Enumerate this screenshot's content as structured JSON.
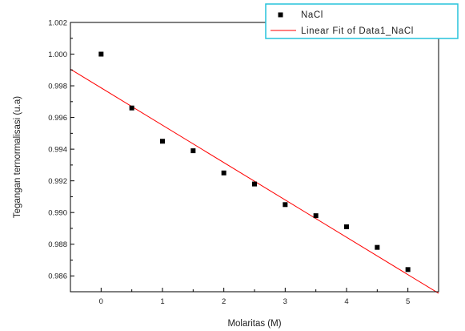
{
  "chart_data": {
    "type": "scatter",
    "title": "",
    "xlabel": "Molaritas (M)",
    "ylabel": "Tegangan ternormalisasi (u.a)",
    "xlim": [
      -0.5,
      5.5
    ],
    "ylim": [
      0.985,
      1.002
    ],
    "x_ticks": [
      0,
      1,
      2,
      3,
      4,
      5
    ],
    "x_tick_labels": [
      "0",
      "1",
      "2",
      "3",
      "4",
      "5"
    ],
    "y_ticks": [
      0.986,
      0.988,
      0.99,
      0.992,
      0.994,
      0.996,
      0.998,
      1.0,
      1.002
    ],
    "y_tick_labels": [
      "0.986",
      "0.988",
      "0.990",
      "0.992",
      "0.994",
      "0.996",
      "0.998",
      "1.000",
      "1.002"
    ],
    "grid": false,
    "legend_position": "top-right",
    "series": [
      {
        "name": "NaCl",
        "kind": "scatter",
        "marker": "square",
        "color": "#000000",
        "x": [
          0,
          0.5,
          1,
          1.5,
          2,
          2.5,
          3,
          3.5,
          4,
          4.5,
          5
        ],
        "y": [
          1.0,
          0.9966,
          0.9945,
          0.9939,
          0.9925,
          0.9918,
          0.9905,
          0.9898,
          0.9891,
          0.9878,
          0.9864
        ]
      },
      {
        "name": "Linear Fit of Data1_NaCl",
        "kind": "line",
        "color": "#ff0000",
        "x": [
          -0.5,
          5.5
        ],
        "y": [
          0.99905,
          0.9849
        ]
      }
    ]
  }
}
